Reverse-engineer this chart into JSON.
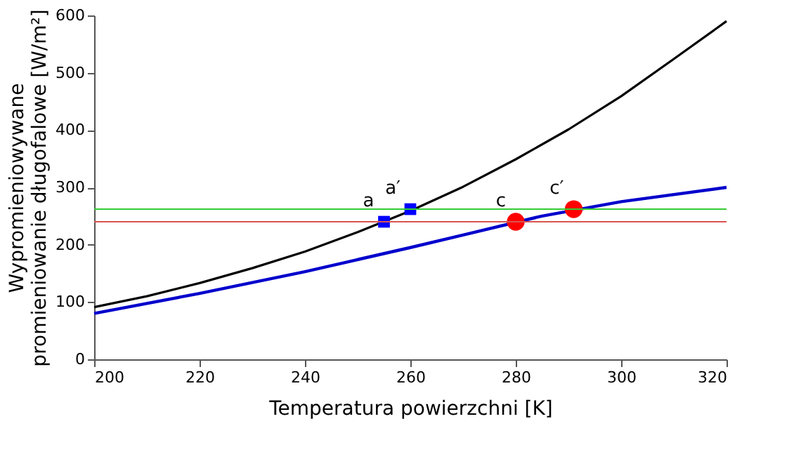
{
  "chart_data": {
    "type": "line",
    "xlabel": "Temperatura powierzchni [K]",
    "ylabel": "Wypromieniowywane\npromieniowanie długofalowe [W/m²]",
    "xlim": [
      200,
      320
    ],
    "xticks": [
      200,
      220,
      240,
      260,
      280,
      300,
      320
    ],
    "ylim": [
      0,
      600
    ],
    "yticks": [
      0,
      100,
      200,
      300,
      400,
      500,
      600
    ],
    "grid": false,
    "series": [
      {
        "color": "#000000",
        "x": [
          200,
          210,
          220,
          230,
          240,
          250,
          260,
          270,
          280,
          290,
          300,
          310,
          320
        ],
        "values": [
          91,
          110,
          133,
          159,
          188,
          222,
          259,
          301,
          349,
          401,
          459,
          524,
          590
        ]
      },
      {
        "color": "#0000cc",
        "x": [
          200,
          220,
          240,
          260,
          270,
          285,
          300,
          320
        ],
        "values": [
          80,
          115,
          153,
          195,
          217,
          250,
          275,
          300
        ]
      },
      {
        "type": "scatter",
        "color": "#0000ff",
        "marker": "square",
        "x": [
          255,
          260
        ],
        "values": [
          240,
          262
        ]
      },
      {
        "type": "scatter",
        "color": "#ff0000",
        "marker": "circle",
        "x": [
          280,
          291
        ],
        "values": [
          240,
          262
        ]
      }
    ],
    "ref_lines": [
      {
        "axis": "y",
        "value": 240,
        "color": "#d9534f"
      },
      {
        "axis": "y",
        "value": 262,
        "color": "#33cc33"
      }
    ],
    "annotations": [
      {
        "text": "a",
        "x": 255,
        "y": 240
      },
      {
        "text": "a′",
        "x": 260,
        "y": 262
      },
      {
        "text": "c",
        "x": 280,
        "y": 240
      },
      {
        "text": "c′",
        "x": 291,
        "y": 262
      }
    ]
  }
}
